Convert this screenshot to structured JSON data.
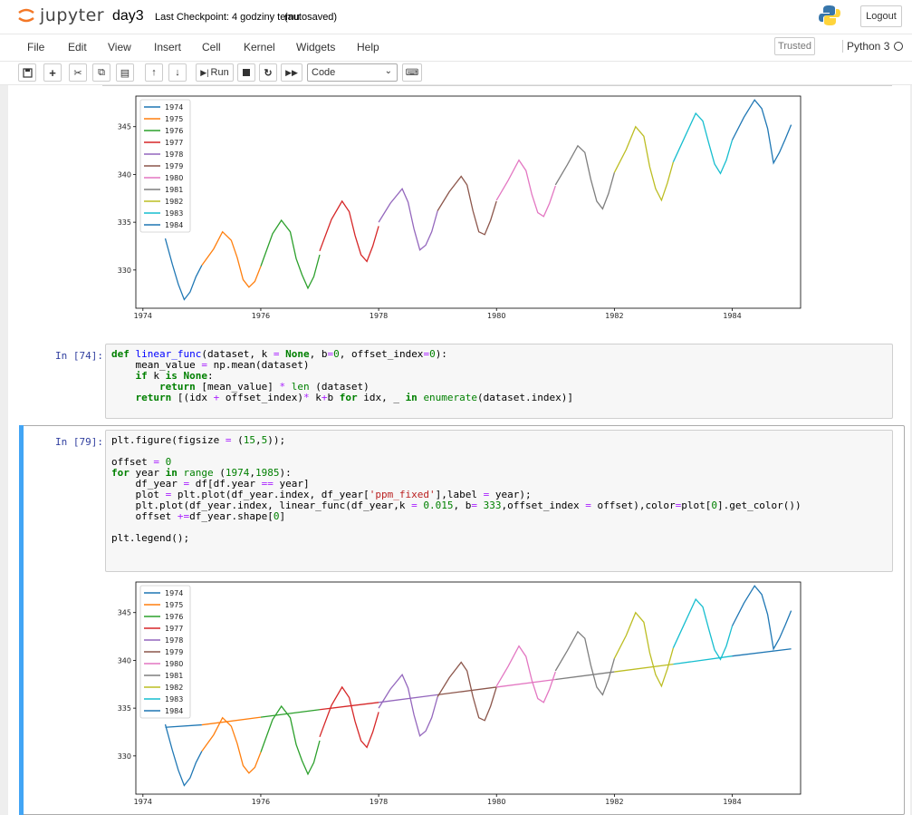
{
  "header": {
    "logo_text": "jupyter",
    "notebook_name": "day3",
    "checkpoint": "Last Checkpoint: 4 godziny temu",
    "autosaved": "(autosaved)",
    "logout": "Logout"
  },
  "menu": [
    "File",
    "Edit",
    "View",
    "Insert",
    "Cell",
    "Kernel",
    "Widgets",
    "Help"
  ],
  "trusted": "Trusted",
  "kernel": "Python 3",
  "toolbar": {
    "run_label": "Run",
    "cell_type": "Code"
  },
  "cells": [
    {
      "prompt": "In [74]:",
      "code": [
        "def linear_func(dataset, k = None, b=0, offset_index=0):",
        "    mean_value = np.mean(dataset)",
        "    if k is None:",
        "        return [mean_value] * len (dataset)",
        "    return [(idx + offset_index)* k+b for idx, _ in enumerate(dataset.index)]"
      ]
    },
    {
      "prompt": "In [79]:",
      "code": [
        "plt.figure(figsize = (15,5));",
        "",
        "offset = 0",
        "for year in range (1974,1985):",
        "    df_year = df[df.year == year]",
        "    plot = plt.plot(df_year.index, df_year['ppm_fixed'],label = year);",
        "    plt.plot(df_year.index, linear_func(df_year,k = 0.015, b= 333,offset_index = offset),color=plot[0].get_color())",
        "    offset +=df_year.shape[0]",
        "",
        "plt.legend();"
      ]
    }
  ],
  "chart_data": [
    {
      "type": "line",
      "title": "",
      "xlabel": "",
      "ylabel": "",
      "xlim": [
        1973.88,
        1985.16
      ],
      "ylim": [
        326.0,
        348.2
      ],
      "xticks": [
        "1974",
        "1976",
        "1978",
        "1980",
        "1982",
        "1984"
      ],
      "yticks": [
        "330",
        "335",
        "340",
        "345"
      ],
      "legend": "top-left",
      "grid": false,
      "colors": [
        "#1f77b4",
        "#ff7f0e",
        "#2ca02c",
        "#d62728",
        "#9467bd",
        "#8c564b",
        "#e377c2",
        "#7f7f7f",
        "#bcbd22",
        "#17becf",
        "#1f77b4"
      ],
      "series": [
        {
          "name": "1974",
          "x": [
            1974.38,
            1974.5,
            1974.6,
            1974.7,
            1974.8,
            1974.9,
            1975.0
          ],
          "y": [
            333.3,
            330.6,
            328.5,
            326.9,
            327.7,
            329.3,
            330.5
          ]
        },
        {
          "name": "1975",
          "x": [
            1975.0,
            1975.2,
            1975.35,
            1975.5,
            1975.6,
            1975.7,
            1975.8,
            1975.9,
            1976.0
          ],
          "y": [
            330.5,
            332.2,
            334.0,
            333.1,
            331.3,
            329.0,
            328.2,
            328.8,
            330.4
          ]
        },
        {
          "name": "1976",
          "x": [
            1976.0,
            1976.2,
            1976.35,
            1976.5,
            1976.6,
            1976.7,
            1976.8,
            1976.9,
            1977.0
          ],
          "y": [
            330.4,
            333.8,
            335.2,
            334.0,
            331.2,
            329.5,
            328.1,
            329.3,
            331.6
          ]
        },
        {
          "name": "1977",
          "x": [
            1977.0,
            1977.2,
            1977.38,
            1977.5,
            1977.6,
            1977.7,
            1977.8,
            1977.9,
            1978.0
          ],
          "y": [
            332.0,
            335.3,
            337.2,
            336.1,
            333.6,
            331.6,
            330.9,
            332.5,
            334.6
          ]
        },
        {
          "name": "1978",
          "x": [
            1978.0,
            1978.2,
            1978.4,
            1978.5,
            1978.6,
            1978.7,
            1978.8,
            1978.9,
            1979.0
          ],
          "y": [
            335.0,
            337.0,
            338.5,
            337.1,
            334.3,
            332.1,
            332.6,
            334.0,
            336.2
          ]
        },
        {
          "name": "1979",
          "x": [
            1979.0,
            1979.2,
            1979.4,
            1979.5,
            1979.6,
            1979.7,
            1979.8,
            1979.9,
            1980.0
          ],
          "y": [
            336.2,
            338.2,
            339.8,
            338.9,
            336.2,
            334.0,
            333.7,
            335.2,
            337.2
          ]
        },
        {
          "name": "1980",
          "x": [
            1980.0,
            1980.2,
            1980.38,
            1980.5,
            1980.6,
            1980.7,
            1980.8,
            1980.9,
            1981.0
          ],
          "y": [
            337.3,
            339.4,
            341.5,
            340.4,
            337.9,
            336.0,
            335.6,
            337.0,
            338.8
          ]
        },
        {
          "name": "1981",
          "x": [
            1981.0,
            1981.2,
            1981.38,
            1981.5,
            1981.6,
            1981.7,
            1981.8,
            1981.9,
            1982.0
          ],
          "y": [
            338.9,
            341.0,
            343.0,
            342.3,
            339.5,
            337.2,
            336.4,
            338.0,
            340.2
          ]
        },
        {
          "name": "1982",
          "x": [
            1982.0,
            1982.2,
            1982.36,
            1982.5,
            1982.6,
            1982.7,
            1982.8,
            1982.9,
            1983.0
          ],
          "y": [
            340.2,
            342.6,
            345.0,
            344.0,
            340.8,
            338.5,
            337.3,
            339.1,
            341.3
          ]
        },
        {
          "name": "1983",
          "x": [
            1983.0,
            1983.2,
            1983.38,
            1983.5,
            1983.6,
            1983.7,
            1983.8,
            1983.9,
            1984.0
          ],
          "y": [
            341.3,
            344.0,
            346.4,
            345.6,
            343.3,
            341.1,
            340.1,
            341.5,
            343.6
          ]
        },
        {
          "name": "1984",
          "x": [
            1984.0,
            1984.2,
            1984.38,
            1984.5,
            1984.6,
            1984.7,
            1984.8,
            1984.9,
            1985.0
          ],
          "y": [
            343.6,
            346.0,
            347.8,
            346.9,
            344.8,
            341.2,
            342.3,
            343.7,
            345.2
          ]
        }
      ]
    },
    {
      "type": "line",
      "title": "",
      "xlabel": "",
      "ylabel": "",
      "xlim": [
        1973.88,
        1985.16
      ],
      "ylim": [
        326.0,
        348.2
      ],
      "xticks": [
        "1974",
        "1976",
        "1978",
        "1980",
        "1982",
        "1984"
      ],
      "yticks": [
        "330",
        "335",
        "340",
        "345"
      ],
      "legend": "top-left",
      "grid": false,
      "colors": [
        "#1f77b4",
        "#ff7f0e",
        "#2ca02c",
        "#d62728",
        "#9467bd",
        "#8c564b",
        "#e377c2",
        "#7f7f7f",
        "#bcbd22",
        "#17becf",
        "#1f77b4"
      ],
      "trend_lines": [
        {
          "x": [
            1974.38,
            1975.0
          ],
          "y": [
            333.0,
            333.25
          ]
        },
        {
          "x": [
            1975.0,
            1976.0
          ],
          "y": [
            333.25,
            334.05
          ]
        },
        {
          "x": [
            1976.0,
            1977.0
          ],
          "y": [
            334.05,
            334.85
          ]
        },
        {
          "x": [
            1977.0,
            1978.0
          ],
          "y": [
            334.85,
            335.6
          ]
        },
        {
          "x": [
            1978.0,
            1979.0
          ],
          "y": [
            335.6,
            336.4
          ]
        },
        {
          "x": [
            1979.0,
            1980.0
          ],
          "y": [
            336.4,
            337.2
          ]
        },
        {
          "x": [
            1980.0,
            1981.0
          ],
          "y": [
            337.2,
            338.0
          ]
        },
        {
          "x": [
            1981.0,
            1982.0
          ],
          "y": [
            338.0,
            338.8
          ]
        },
        {
          "x": [
            1982.0,
            1983.0
          ],
          "y": [
            338.8,
            339.6
          ]
        },
        {
          "x": [
            1983.0,
            1984.0
          ],
          "y": [
            339.6,
            340.45
          ]
        },
        {
          "x": [
            1984.0,
            1985.0
          ],
          "y": [
            340.45,
            341.2
          ]
        }
      ],
      "series": [
        {
          "name": "1974",
          "x": [
            1974.38,
            1974.5,
            1974.6,
            1974.7,
            1974.8,
            1974.9,
            1975.0
          ],
          "y": [
            333.3,
            330.6,
            328.5,
            326.9,
            327.7,
            329.3,
            330.5
          ]
        },
        {
          "name": "1975",
          "x": [
            1975.0,
            1975.2,
            1975.35,
            1975.5,
            1975.6,
            1975.7,
            1975.8,
            1975.9,
            1976.0
          ],
          "y": [
            330.5,
            332.2,
            334.0,
            333.1,
            331.3,
            329.0,
            328.2,
            328.8,
            330.4
          ]
        },
        {
          "name": "1976",
          "x": [
            1976.0,
            1976.2,
            1976.35,
            1976.5,
            1976.6,
            1976.7,
            1976.8,
            1976.9,
            1977.0
          ],
          "y": [
            330.4,
            333.8,
            335.2,
            334.0,
            331.2,
            329.5,
            328.1,
            329.3,
            331.6
          ]
        },
        {
          "name": "1977",
          "x": [
            1977.0,
            1977.2,
            1977.38,
            1977.5,
            1977.6,
            1977.7,
            1977.8,
            1977.9,
            1978.0
          ],
          "y": [
            332.0,
            335.3,
            337.2,
            336.1,
            333.6,
            331.6,
            330.9,
            332.5,
            334.6
          ]
        },
        {
          "name": "1978",
          "x": [
            1978.0,
            1978.2,
            1978.4,
            1978.5,
            1978.6,
            1978.7,
            1978.8,
            1978.9,
            1979.0
          ],
          "y": [
            335.0,
            337.0,
            338.5,
            337.1,
            334.3,
            332.1,
            332.6,
            334.0,
            336.2
          ]
        },
        {
          "name": "1979",
          "x": [
            1979.0,
            1979.2,
            1979.4,
            1979.5,
            1979.6,
            1979.7,
            1979.8,
            1979.9,
            1980.0
          ],
          "y": [
            336.2,
            338.2,
            339.8,
            338.9,
            336.2,
            334.0,
            333.7,
            335.2,
            337.2
          ]
        },
        {
          "name": "1980",
          "x": [
            1980.0,
            1980.2,
            1980.38,
            1980.5,
            1980.6,
            1980.7,
            1980.8,
            1980.9,
            1981.0
          ],
          "y": [
            337.3,
            339.4,
            341.5,
            340.4,
            337.9,
            336.0,
            335.6,
            337.0,
            338.8
          ]
        },
        {
          "name": "1981",
          "x": [
            1981.0,
            1981.2,
            1981.38,
            1981.5,
            1981.6,
            1981.7,
            1981.8,
            1981.9,
            1982.0
          ],
          "y": [
            338.9,
            341.0,
            343.0,
            342.3,
            339.5,
            337.2,
            336.4,
            338.0,
            340.2
          ]
        },
        {
          "name": "1982",
          "x": [
            1982.0,
            1982.2,
            1982.36,
            1982.5,
            1982.6,
            1982.7,
            1982.8,
            1982.9,
            1983.0
          ],
          "y": [
            340.2,
            342.6,
            345.0,
            344.0,
            340.8,
            338.5,
            337.3,
            339.1,
            341.3
          ]
        },
        {
          "name": "1983",
          "x": [
            1983.0,
            1983.2,
            1983.38,
            1983.5,
            1983.6,
            1983.7,
            1983.8,
            1983.9,
            1984.0
          ],
          "y": [
            341.3,
            344.0,
            346.4,
            345.6,
            343.3,
            341.1,
            340.1,
            341.5,
            343.6
          ]
        },
        {
          "name": "1984",
          "x": [
            1984.0,
            1984.2,
            1984.38,
            1984.5,
            1984.6,
            1984.7,
            1984.8,
            1984.9,
            1985.0
          ],
          "y": [
            343.6,
            346.0,
            347.8,
            346.9,
            344.8,
            341.2,
            342.3,
            343.7,
            345.2
          ]
        }
      ]
    }
  ]
}
